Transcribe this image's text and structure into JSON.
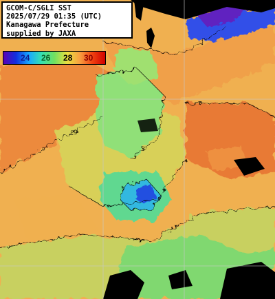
{
  "header": {
    "line1": "GCOM-C/SGLI SST",
    "line2": "2025/07/29 01:35 (UTC)",
    "line3": "Kanagawa Prefecture",
    "line4": "supplied by JAXA"
  },
  "legend": {
    "ticks": [
      "24",
      "26",
      "28",
      "30"
    ],
    "tick_colors": [
      "#10188c",
      "#0a5f2a",
      "#000000",
      "#8b0000"
    ],
    "gradient": [
      "#5a00b4",
      "#1030e0",
      "#18a8ff",
      "#36e0b0",
      "#70e060",
      "#e8e040",
      "#f8a040",
      "#f04010",
      "#d00000"
    ]
  },
  "map_colors": {
    "land": "#000000",
    "warm": "#f0a050",
    "hot": "#e87030",
    "mid": "#c8e060",
    "cool": "#70e0a0",
    "cold": "#20a0e0",
    "deep": "#2040d0",
    "grid": "#c8c8c8"
  }
}
